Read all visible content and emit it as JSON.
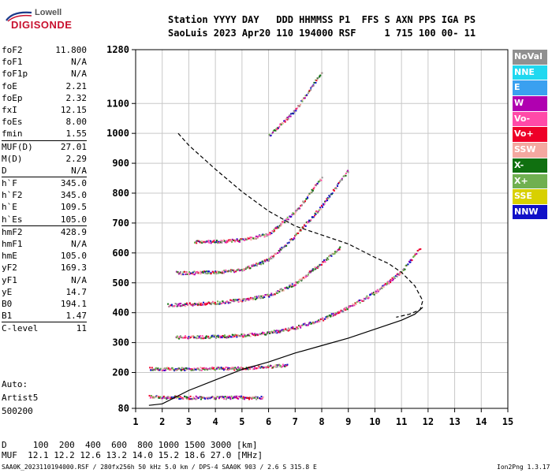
{
  "logo": {
    "line1": "Lowell",
    "line2": "DIGISONDE"
  },
  "header": {
    "row1": "Station YYYY DAY   DDD HHMMSS P1  FFS S AXN PPS IGA PS",
    "row2": "SaoLuis 2023 Apr20 110 194000 RSF     1 715 100 00- 11"
  },
  "params": [
    {
      "k": "foF2",
      "v": "11.800"
    },
    {
      "k": "foF1",
      "v": "N/A"
    },
    {
      "k": "foF1p",
      "v": "N/A"
    },
    {
      "k": "foE",
      "v": "2.21"
    },
    {
      "k": "foEp",
      "v": "2.32"
    },
    {
      "k": "fxI",
      "v": "12.15"
    },
    {
      "k": "foEs",
      "v": "8.00"
    },
    {
      "k": "fmin",
      "v": "1.55"
    },
    {
      "k": "MUF(D)",
      "v": "27.01",
      "sep": true
    },
    {
      "k": "M(D)",
      "v": "2.29"
    },
    {
      "k": "D",
      "v": "N/A"
    },
    {
      "k": "h`F",
      "v": "345.0",
      "sep": true
    },
    {
      "k": "h`F2",
      "v": "345.0"
    },
    {
      "k": "h`E",
      "v": "109.5"
    },
    {
      "k": "h`Es",
      "v": "105.0"
    },
    {
      "k": "hmF2",
      "v": "428.9",
      "sep": true
    },
    {
      "k": "hmF1",
      "v": "N/A"
    },
    {
      "k": "hmE",
      "v": "105.0"
    },
    {
      "k": "yF2",
      "v": "169.3"
    },
    {
      "k": "yF1",
      "v": "N/A"
    },
    {
      "k": "yE",
      "v": "14.7"
    },
    {
      "k": "B0",
      "v": "194.1"
    },
    {
      "k": "B1",
      "v": "1.47"
    },
    {
      "k": "C-level",
      "v": "11",
      "sep": true
    }
  ],
  "auto": {
    "line1": "Auto:",
    "line2": "Artist5",
    "line3": "500200"
  },
  "legend": [
    {
      "label": "NoVal",
      "color": "#909090"
    },
    {
      "label": "NNE",
      "color": "#20d8f0"
    },
    {
      "label": "E",
      "color": "#3aa0f0"
    },
    {
      "label": "W",
      "color": "#b000b0"
    },
    {
      "label": "Vo-",
      "color": "#ff4aa8"
    },
    {
      "label": "Vo+",
      "color": "#ee0028"
    },
    {
      "label": "SSW",
      "color": "#f4a8a0"
    },
    {
      "label": "X-",
      "color": "#107010"
    },
    {
      "label": "X+",
      "color": "#70b050"
    },
    {
      "label": "SSE",
      "color": "#d8d000"
    },
    {
      "label": "NNW",
      "color": "#1010c8"
    }
  ],
  "bottom": {
    "row1": "D     100  200  400  600  800 1000 1500 3000 [km]",
    "row2": "MUF  12.1 12.2 12.6 13.2 14.0 15.2 18.6 27.0 [MHz]"
  },
  "footer": {
    "left": "SAA0K_2023110194000.RSF / 280fx256h 50 kHz 5.0 km / DPS-4 SAA0K 903 / 2.6 S 315.8 E",
    "right": "Ion2Png 1.3.17"
  },
  "chart_data": {
    "type": "scatter",
    "x_ticks": [
      1,
      2,
      3,
      4,
      5,
      6,
      7,
      8,
      9,
      10,
      11,
      12,
      13,
      14,
      15
    ],
    "y_ticks": [
      80,
      200,
      300,
      400,
      500,
      600,
      700,
      800,
      900,
      1000,
      1100,
      1280
    ],
    "xlim": [
      1,
      15
    ],
    "ylim": [
      80,
      1280
    ],
    "grid": true,
    "traces": [
      {
        "name": "o-trace F2 1st",
        "freq": [
          2.5,
          4,
          5,
          6,
          7,
          8,
          9,
          10,
          11,
          11.7
        ],
        "height": [
          320,
          322,
          326,
          335,
          352,
          380,
          420,
          470,
          540,
          620
        ]
      },
      {
        "name": "o-trace F2 2nd",
        "freq": [
          2.2,
          3,
          4,
          5,
          6,
          7,
          8,
          8.7
        ],
        "height": [
          428,
          430,
          435,
          445,
          460,
          500,
          570,
          620
        ]
      },
      {
        "name": "o-trace F2 3rd",
        "freq": [
          2.5,
          3,
          4,
          5,
          6,
          7,
          8,
          9
        ],
        "height": [
          535,
          535,
          537,
          545,
          580,
          660,
          760,
          880
        ]
      },
      {
        "name": "o-trace F2 4th",
        "freq": [
          3.2,
          4,
          5,
          6,
          7,
          8
        ],
        "height": [
          640,
          640,
          645,
          665,
          740,
          855
        ]
      },
      {
        "name": "o-trace F2 5th",
        "freq": [
          6,
          7,
          8
        ],
        "height": [
          995,
          1080,
          1210
        ]
      },
      {
        "name": "E layer",
        "freq": [
          1.5,
          3,
          4,
          5,
          5.8
        ],
        "height": [
          120,
          118,
          118,
          118,
          117
        ]
      },
      {
        "name": "Es",
        "freq": [
          1.5,
          2,
          3,
          4,
          5,
          6,
          6.7
        ],
        "height": [
          214,
          214,
          214,
          215,
          216,
          222,
          226
        ]
      }
    ],
    "profile": {
      "name": "profile",
      "freq": [
        1.5,
        2,
        3,
        4,
        5,
        6,
        7,
        8,
        9,
        10,
        11,
        11.5,
        11.8
      ],
      "height": [
        90,
        95,
        140,
        175,
        210,
        235,
        265,
        290,
        315,
        345,
        375,
        395,
        418
      ]
    },
    "muf_curve": {
      "name": "MUF curve",
      "freq": [
        2.6,
        3,
        4,
        5,
        6,
        7,
        8,
        9,
        10,
        10.5,
        11,
        11.5,
        11.8,
        11.7,
        11.3,
        10.8
      ],
      "height": [
        1000,
        960,
        880,
        805,
        740,
        690,
        660,
        630,
        585,
        565,
        535,
        490,
        440,
        410,
        395,
        385
      ]
    }
  }
}
